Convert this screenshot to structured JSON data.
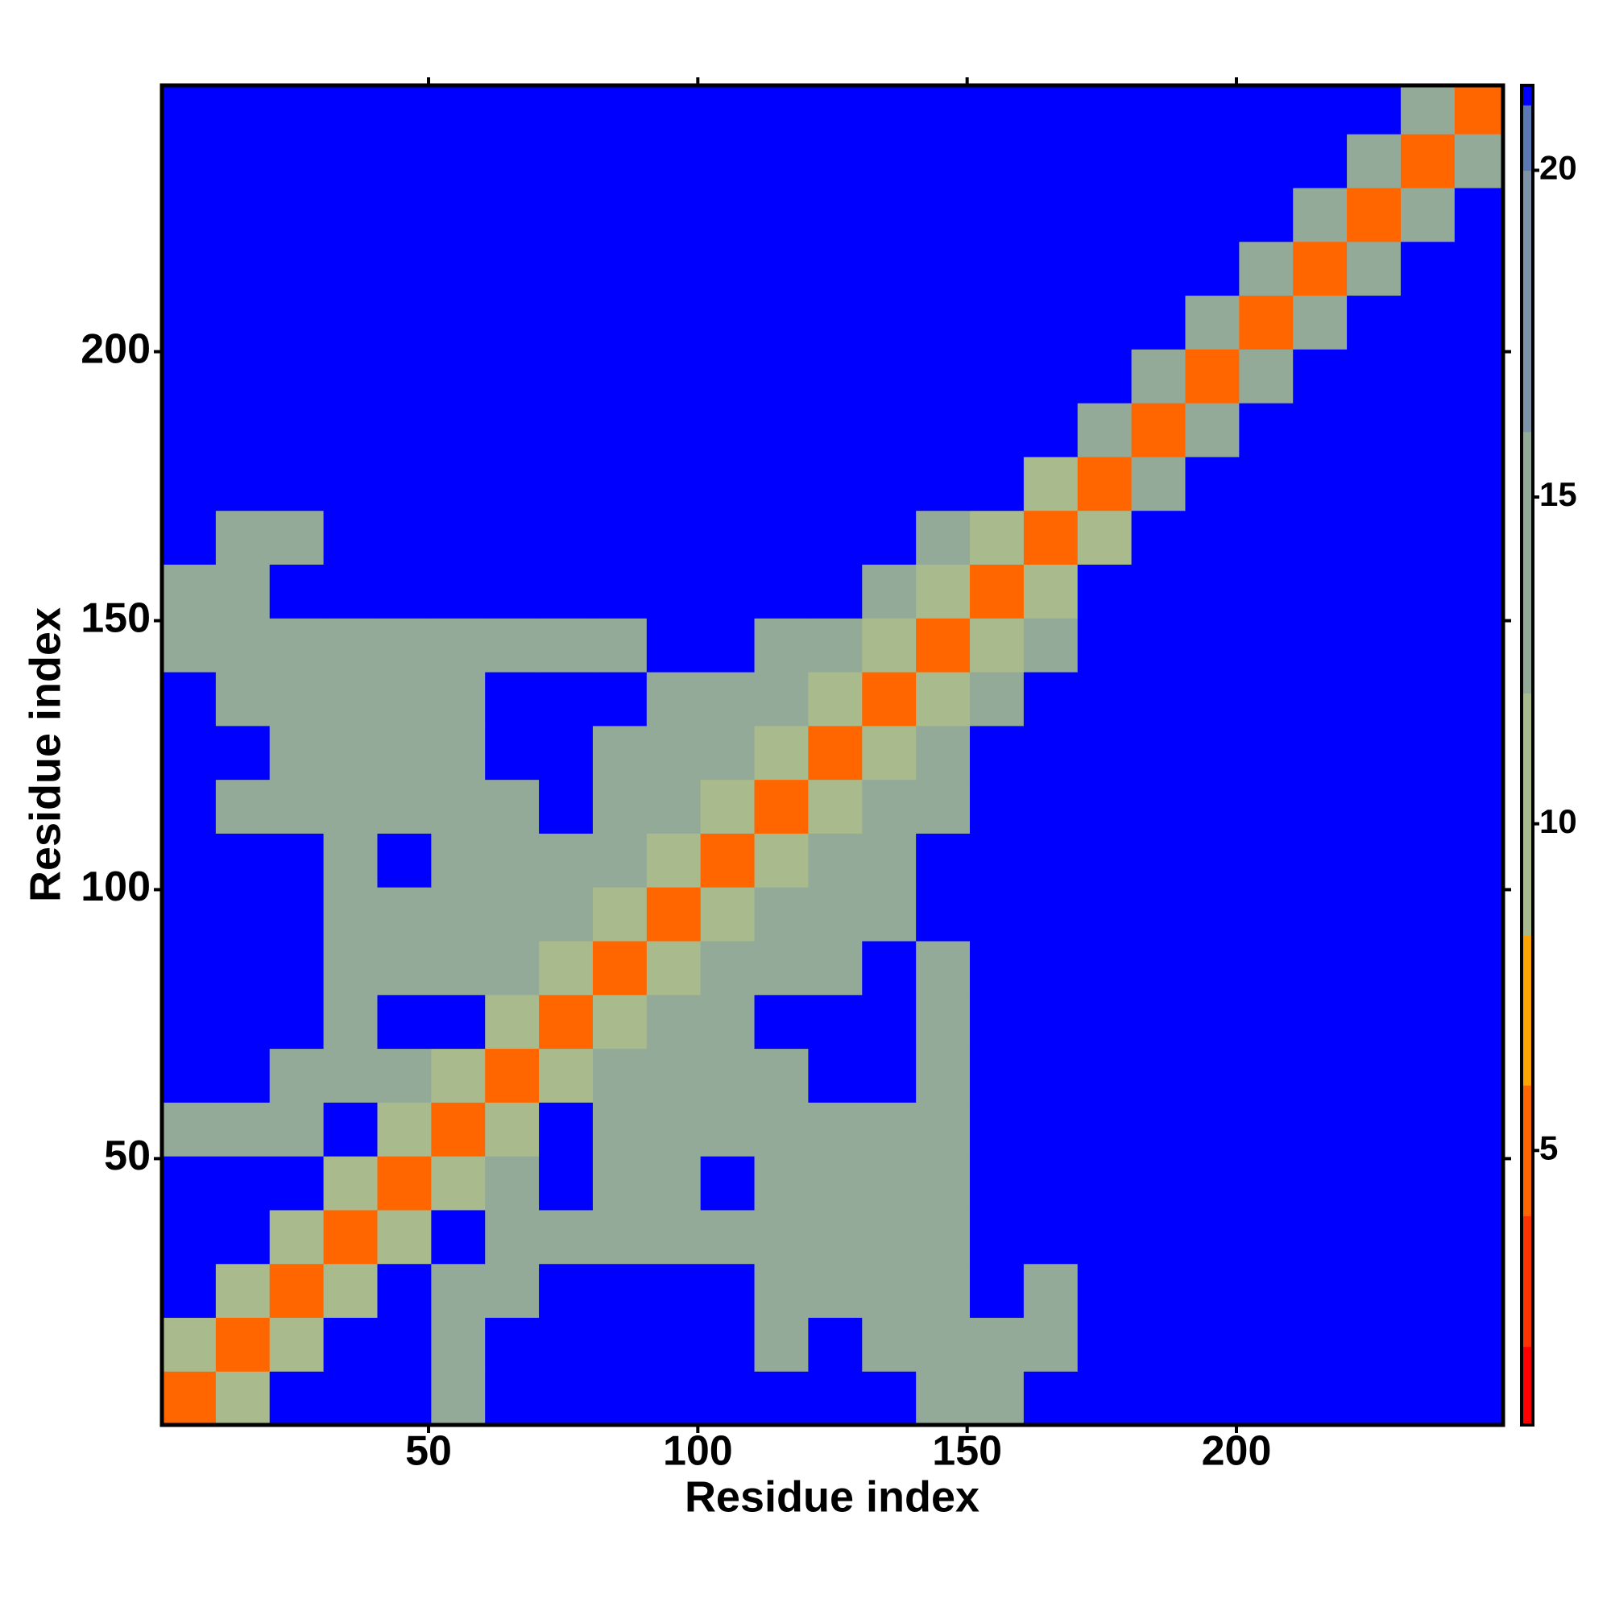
{
  "chart_data": {
    "type": "heatmap",
    "xlabel": "Residue index",
    "ylabel": "Residue index",
    "xbins": [
      0.5,
      10.5,
      20.5,
      30.5,
      40.5,
      50.5,
      60.5,
      70.5,
      80.5,
      90.5,
      100.5,
      110.5,
      120.5,
      130.5,
      140.5,
      150.5,
      160.5,
      170.5,
      180.5,
      190.5,
      200.5,
      210.5,
      220.5,
      230.5,
      240.5,
      249.5
    ],
    "ybins": [
      0.5,
      10.5,
      20.5,
      30.5,
      40.5,
      50.5,
      60.5,
      70.5,
      80.5,
      90.5,
      100.5,
      110.5,
      120.5,
      130.5,
      140.5,
      150.5,
      160.5,
      170.5,
      180.5,
      190.5,
      200.5,
      210.5,
      220.5,
      230.5,
      240.5,
      249.5
    ],
    "xlim": [
      0.5,
      249.5
    ],
    "ylim": [
      0.5,
      249.5
    ],
    "xticks": [
      50,
      100,
      150,
      200
    ],
    "yticks": [
      50,
      100,
      150,
      200
    ],
    "colormap": {
      "bounds": [
        0.8,
        2,
        4,
        6,
        8.3,
        12,
        16,
        20,
        21,
        21.3
      ],
      "colors": [
        "#ff0000",
        "#ff3300",
        "#ff6600",
        "#ffa500",
        "#a9ba8c",
        "#94aa98",
        "#7d93a8",
        "#5a78b4",
        "#0000ff"
      ]
    },
    "zticks": [
      5,
      10,
      15,
      20
    ],
    "z": [
      [
        4,
        10,
        21.3,
        21.3,
        21.3,
        13,
        21.3,
        21.3,
        21.3,
        21.3,
        21.3,
        21.3,
        21.3,
        21.3,
        13,
        13,
        21.3,
        21.3,
        21.3,
        21.3,
        21.3,
        21.3,
        21.3,
        21.3,
        21.3
      ],
      [
        10,
        4,
        10,
        21.3,
        21.3,
        14,
        21.3,
        21.3,
        21.3,
        21.3,
        21.3,
        15,
        21.3,
        13,
        12,
        12,
        14,
        21.3,
        21.3,
        21.3,
        21.3,
        21.3,
        21.3,
        21.3,
        21.3
      ],
      [
        21.3,
        10,
        4,
        10,
        21.3,
        13,
        14,
        21.3,
        21.3,
        21.3,
        21.3,
        13,
        13,
        14,
        13,
        21.3,
        14,
        21.3,
        21.3,
        21.3,
        21.3,
        21.3,
        21.3,
        21.3,
        21.3
      ],
      [
        21.3,
        21.3,
        10,
        4,
        10,
        21.3,
        12,
        14,
        13,
        13,
        13,
        12,
        13,
        14,
        13,
        21.3,
        21.3,
        21.3,
        21.3,
        21.3,
        21.3,
        21.3,
        21.3,
        21.3,
        21.3
      ],
      [
        21.3,
        21.3,
        21.3,
        10,
        4,
        10,
        13,
        21.3,
        13,
        13,
        21.3,
        13,
        13,
        14,
        12,
        21.3,
        21.3,
        21.3,
        21.3,
        21.3,
        21.3,
        21.3,
        21.3,
        21.3,
        21.3
      ],
      [
        13,
        14,
        13,
        21.3,
        10,
        4,
        10,
        21.3,
        13,
        13,
        13,
        13,
        13,
        15,
        14,
        21.3,
        21.3,
        21.3,
        21.3,
        21.3,
        21.3,
        21.3,
        21.3,
        21.3,
        21.3
      ],
      [
        21.3,
        21.3,
        14,
        12,
        13,
        10,
        4,
        10,
        13,
        13,
        13,
        13,
        21.3,
        21.3,
        13,
        21.3,
        21.3,
        21.3,
        21.3,
        21.3,
        21.3,
        21.3,
        21.3,
        21.3,
        21.3
      ],
      [
        21.3,
        21.3,
        21.3,
        14,
        21.3,
        21.3,
        10,
        4,
        10,
        14,
        13,
        21.3,
        21.3,
        21.3,
        13,
        21.3,
        21.3,
        21.3,
        21.3,
        21.3,
        21.3,
        21.3,
        21.3,
        21.3,
        21.3
      ],
      [
        21.3,
        21.3,
        21.3,
        13,
        13,
        13,
        13,
        10,
        4,
        10,
        14,
        13,
        13,
        21.3,
        13,
        21.3,
        21.3,
        21.3,
        21.3,
        21.3,
        21.3,
        21.3,
        21.3,
        21.3,
        21.3
      ],
      [
        21.3,
        21.3,
        21.3,
        13,
        13,
        13,
        13,
        14,
        10,
        4,
        10,
        14,
        13,
        13,
        21.3,
        21.3,
        21.3,
        21.3,
        21.3,
        21.3,
        21.3,
        21.3,
        21.3,
        21.3,
        21.3
      ],
      [
        21.3,
        21.3,
        21.3,
        13,
        21.3,
        13,
        13,
        13,
        14,
        10,
        4,
        10,
        13,
        13,
        21.3,
        21.3,
        21.3,
        21.3,
        21.3,
        21.3,
        21.3,
        21.3,
        21.3,
        21.3,
        21.3
      ],
      [
        21.3,
        15,
        13,
        12,
        13,
        13,
        13,
        21.3,
        13,
        14,
        10,
        4,
        10,
        13,
        13,
        21.3,
        21.3,
        21.3,
        21.3,
        21.3,
        21.3,
        21.3,
        21.3,
        21.3,
        21.3
      ],
      [
        21.3,
        21.3,
        13,
        13,
        13,
        13,
        21.3,
        21.3,
        13,
        13,
        13,
        10,
        4,
        10,
        14,
        21.3,
        21.3,
        21.3,
        21.3,
        21.3,
        21.3,
        21.3,
        21.3,
        21.3,
        21.3
      ],
      [
        21.3,
        13,
        14,
        14,
        14,
        15,
        21.3,
        21.3,
        21.3,
        13,
        13,
        13,
        10,
        4,
        10,
        13,
        21.3,
        21.3,
        21.3,
        21.3,
        21.3,
        21.3,
        21.3,
        21.3,
        21.3
      ],
      [
        13,
        12,
        13,
        13,
        12,
        14,
        13,
        13,
        13,
        21.3,
        21.3,
        13,
        14,
        10,
        4,
        10,
        14,
        21.3,
        21.3,
        21.3,
        21.3,
        21.3,
        21.3,
        21.3,
        21.3
      ],
      [
        13,
        12,
        21.3,
        21.3,
        21.3,
        21.3,
        21.3,
        21.3,
        21.3,
        21.3,
        21.3,
        21.3,
        21.3,
        13,
        10,
        4,
        10,
        21.3,
        21.3,
        21.3,
        21.3,
        21.3,
        21.3,
        21.3,
        21.3
      ],
      [
        21.3,
        14,
        14,
        21.3,
        21.3,
        21.3,
        21.3,
        21.3,
        21.3,
        21.3,
        21.3,
        21.3,
        21.3,
        21.3,
        14,
        10,
        4,
        10,
        21.3,
        21.3,
        21.3,
        21.3,
        21.3,
        21.3,
        21.3
      ],
      [
        21.3,
        21.3,
        21.3,
        21.3,
        21.3,
        21.3,
        21.3,
        21.3,
        21.3,
        21.3,
        21.3,
        21.3,
        21.3,
        21.3,
        21.3,
        21.3,
        10,
        4,
        12,
        21.3,
        21.3,
        21.3,
        21.3,
        21.3,
        21.3
      ],
      [
        21.3,
        21.3,
        21.3,
        21.3,
        21.3,
        21.3,
        21.3,
        21.3,
        21.3,
        21.3,
        21.3,
        21.3,
        21.3,
        21.3,
        21.3,
        21.3,
        21.3,
        12,
        4,
        12,
        21.3,
        21.3,
        21.3,
        21.3,
        21.3
      ],
      [
        21.3,
        21.3,
        21.3,
        21.3,
        21.3,
        21.3,
        21.3,
        21.3,
        21.3,
        21.3,
        21.3,
        21.3,
        21.3,
        21.3,
        21.3,
        21.3,
        21.3,
        21.3,
        12,
        4,
        12,
        21.3,
        21.3,
        21.3,
        21.3
      ],
      [
        21.3,
        21.3,
        21.3,
        21.3,
        21.3,
        21.3,
        21.3,
        21.3,
        21.3,
        21.3,
        21.3,
        21.3,
        21.3,
        21.3,
        21.3,
        21.3,
        21.3,
        21.3,
        21.3,
        12,
        4,
        12,
        21.3,
        21.3,
        21.3
      ],
      [
        21.3,
        21.3,
        21.3,
        21.3,
        21.3,
        21.3,
        21.3,
        21.3,
        21.3,
        21.3,
        21.3,
        21.3,
        21.3,
        21.3,
        21.3,
        21.3,
        21.3,
        21.3,
        21.3,
        21.3,
        12,
        4,
        12,
        21.3,
        21.3
      ],
      [
        21.3,
        21.3,
        21.3,
        21.3,
        21.3,
        21.3,
        21.3,
        21.3,
        21.3,
        21.3,
        21.3,
        21.3,
        21.3,
        21.3,
        21.3,
        21.3,
        21.3,
        21.3,
        21.3,
        21.3,
        21.3,
        12,
        4,
        12,
        21.3
      ],
      [
        21.3,
        21.3,
        21.3,
        21.3,
        21.3,
        21.3,
        21.3,
        21.3,
        21.3,
        21.3,
        21.3,
        21.3,
        21.3,
        21.3,
        21.3,
        21.3,
        21.3,
        21.3,
        21.3,
        21.3,
        21.3,
        21.3,
        12,
        4,
        12
      ],
      [
        21.3,
        21.3,
        21.3,
        21.3,
        21.3,
        21.3,
        21.3,
        21.3,
        21.3,
        21.3,
        21.3,
        21.3,
        21.3,
        21.3,
        21.3,
        21.3,
        21.3,
        21.3,
        21.3,
        21.3,
        21.3,
        21.3,
        21.3,
        12,
        4
      ]
    ]
  }
}
